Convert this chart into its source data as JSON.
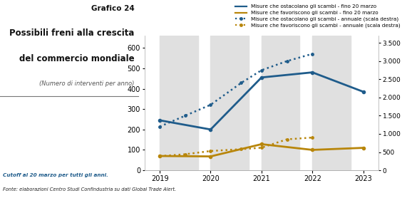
{
  "title_main": "Grafico 24",
  "title_sub1": "Possibili freni alla crescita",
  "title_sub2": "del commercio mondiale",
  "title_sub3": "(Numero di interventi per anno)",
  "footnote1": "Cutoff al 20 marzo per tutti gli anni.",
  "footnote2": "Fonte: elaborazioni Centro Studi Confindustria su dati Global Trade Alert.",
  "years": [
    2019,
    2020,
    2021,
    2022,
    2023
  ],
  "blue_solid": [
    245,
    200,
    455,
    480,
    385
  ],
  "gold_solid": [
    70,
    68,
    128,
    100,
    110
  ],
  "blue_dotted_x": [
    2019,
    2019.5,
    2020,
    2020.6,
    2021,
    2021.5,
    2022
  ],
  "blue_dotted_y": [
    1200,
    1500,
    1800,
    2400,
    2750,
    3000,
    3200
  ],
  "gold_dotted_x": [
    2019,
    2019.5,
    2020,
    2020.6,
    2021,
    2021.5,
    2022
  ],
  "gold_dotted_y": [
    390,
    440,
    530,
    580,
    620,
    850,
    900
  ],
  "blue_color": "#1F5C8B",
  "gold_color": "#B8860B",
  "bg_band_color": "#E0E0E0",
  "ylim_left": [
    0,
    660
  ],
  "ylim_right": [
    0,
    3700
  ],
  "yticks_left": [
    0,
    100,
    200,
    300,
    400,
    500,
    600
  ],
  "yticks_right": [
    0,
    500,
    1000,
    1500,
    2000,
    2500,
    3000,
    3500
  ],
  "ytick_right_labels": [
    "0",
    "500",
    "1.000",
    "1.500",
    "2.000",
    "2.500",
    "3.000",
    "3.500"
  ],
  "xlim": [
    2018.7,
    2023.3
  ],
  "xticks": [
    2019,
    2020,
    2021,
    2022,
    2023
  ],
  "xtick_labels": [
    "2019",
    "2020",
    "2021",
    "2022",
    "2023"
  ],
  "legend_items": [
    "Misure che ostacolano gli scambi - fino 20 marzo",
    "Misure che favoriscono gli scambi - fino 20 marzo",
    "Misure che ostacolano gli scambi - annuale (scala destra)",
    "Misure che favoriscono gli scambi - annuale (scala destra)"
  ],
  "band_spans": [
    [
      2019,
      2019.75
    ],
    [
      2020,
      2020.75
    ],
    [
      2021,
      2021.75
    ],
    [
      2022,
      2022.75
    ]
  ]
}
